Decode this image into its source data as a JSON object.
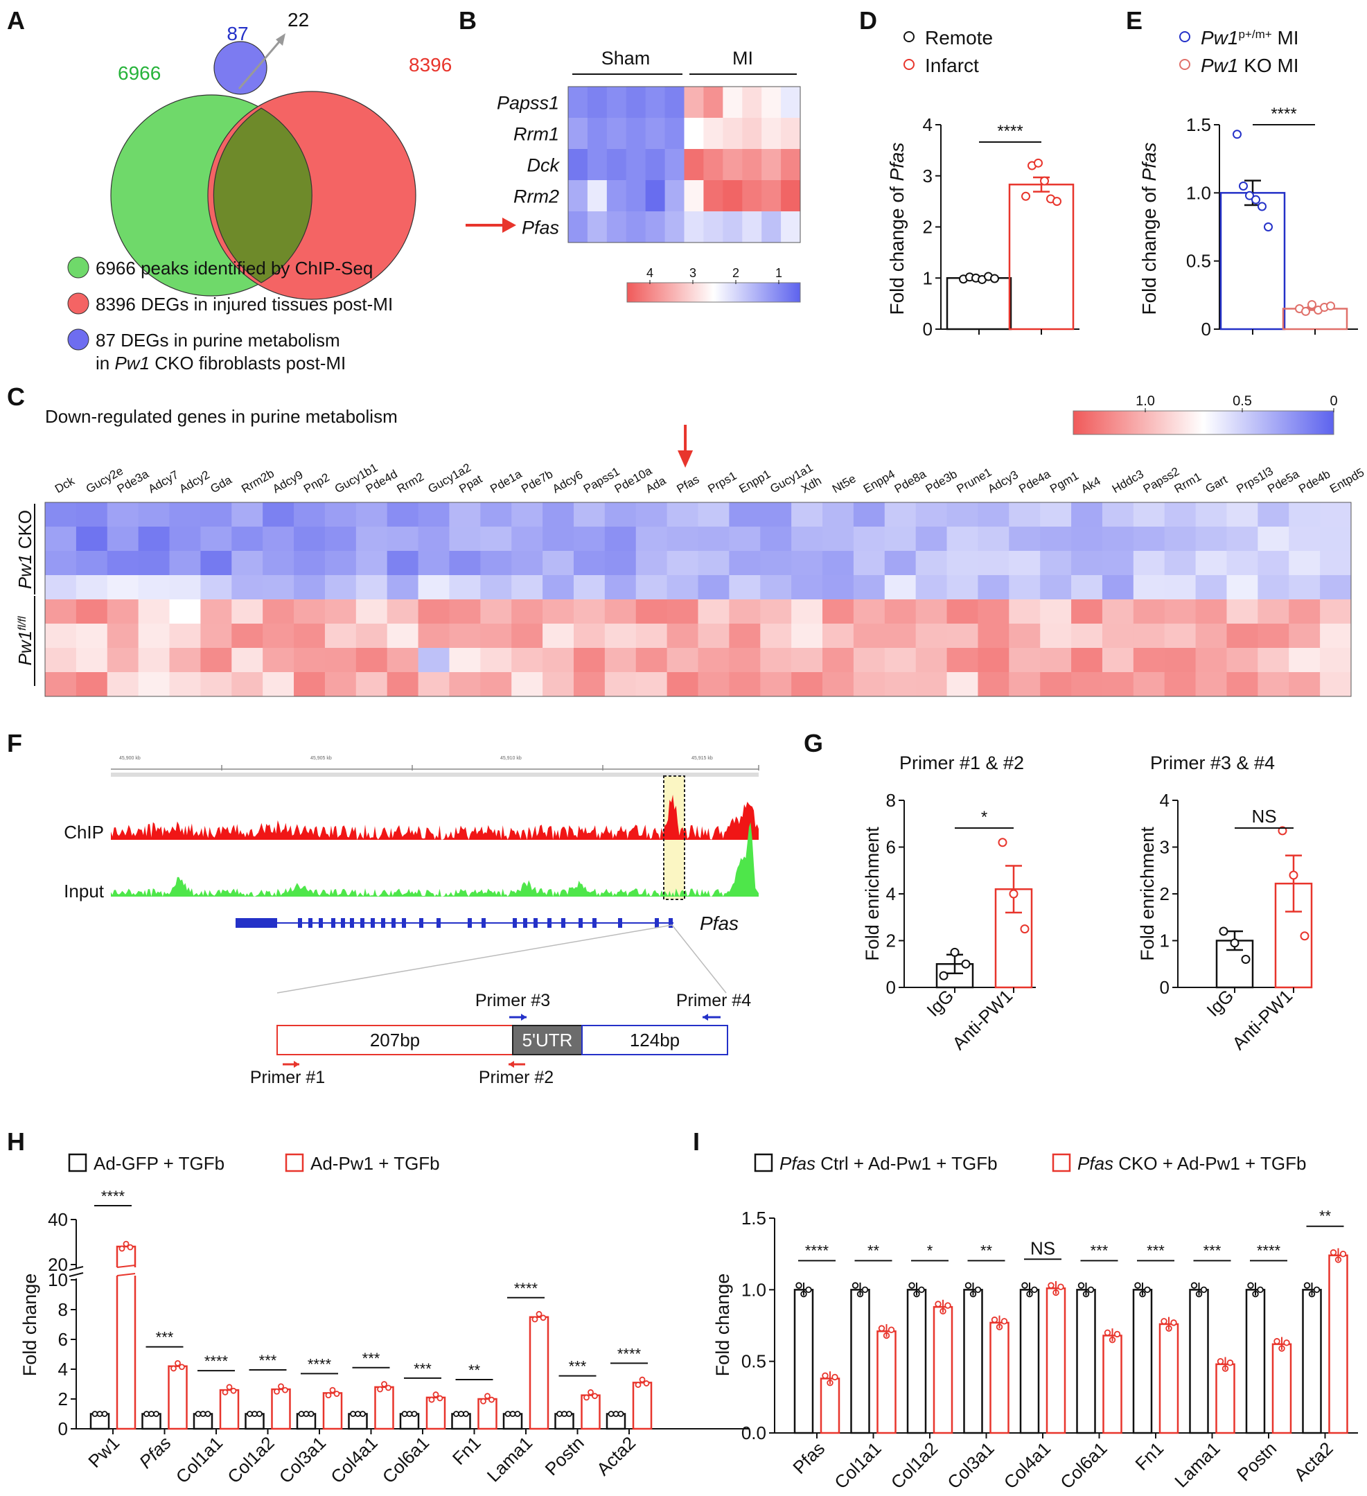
{
  "colors": {
    "red": "#e8352c",
    "blue": "#2431c8",
    "green": "#26b33a",
    "black": "#111111",
    "heat_red": "#f05a5a",
    "heat_white": "#ffffff",
    "heat_blue": "#5d63ee",
    "pfas_gray": "#6c6c6c",
    "venn_green": "#6fd96a",
    "venn_red": "#f46464",
    "venn_blue": "#6e6df0",
    "venn_olive": "#6e8a2a"
  },
  "panel_letters": [
    "A",
    "B",
    "C",
    "D",
    "E",
    "F",
    "G",
    "H",
    "I"
  ],
  "venn": {
    "n_chip": "6966",
    "n_deg": "8396",
    "n_purine": "87",
    "n_overlap": "22",
    "legend": [
      {
        "text": "6966 peaks identified by ChIP-Seq",
        "color": "green"
      },
      {
        "text": "8396 DEGs in injured tissues post-MI",
        "color": "red"
      },
      {
        "text": "87 DEGs in purine metabolism",
        "color": "blue"
      }
    ],
    "legend_line2_prefix": "in ",
    "legend_line2_italic": "Pw1",
    "legend_line2_suffix": " CKO fibroblasts post-MI"
  },
  "heat_b": {
    "groups": [
      "Sham",
      "MI"
    ],
    "genes": [
      "Papss1",
      "Rrm1",
      "Dck",
      "Rrm2",
      "Pfas"
    ],
    "scale_ticks": [
      "4",
      "3",
      "2",
      "1"
    ],
    "values": [
      [
        1.4,
        1.3,
        1.4,
        1.3,
        1.4,
        1.3,
        3.2,
        3.5,
        2.6,
        2.8,
        2.6,
        2.3
      ],
      [
        1.6,
        1.4,
        1.5,
        1.4,
        1.5,
        1.4,
        2.5,
        2.7,
        2.8,
        2.9,
        2.7,
        2.8
      ],
      [
        1.2,
        1.4,
        1.3,
        1.4,
        1.3,
        1.5,
        3.8,
        3.6,
        3.4,
        3.5,
        3.3,
        3.6
      ],
      [
        1.7,
        2.3,
        1.5,
        1.4,
        1.1,
        1.7,
        2.6,
        3.8,
        3.9,
        3.7,
        3.6,
        3.9
      ],
      [
        1.5,
        1.8,
        1.6,
        1.5,
        1.6,
        1.8,
        2.2,
        2.1,
        2.0,
        2.2,
        1.9,
        2.3
      ]
    ]
  },
  "heat_c": {
    "title": "Down-regulated genes in purine metabolism",
    "row_label_top": "CKO",
    "row_label_top_italic": "Pw1",
    "row_label_bottom_italic": "Pw1",
    "row_label_bottom_sup": "fl/fl",
    "scale_ticks": [
      "1.0",
      "0.5",
      "0"
    ],
    "genes": [
      "Dck",
      "Gucy2e",
      "Pde3a",
      "Adcy7",
      "Adcy2",
      "Gda",
      "Rrm2b",
      "Adcy9",
      "Pnp2",
      "Gucy1b1",
      "Pde4d",
      "Rrm2",
      "Gucy1a2",
      "Ppat",
      "Pde1a",
      "Pde7b",
      "Adcy6",
      "Papss1",
      "Pde10a",
      "Ada",
      "Pfas",
      "Prps1",
      "Enpp1",
      "Gucy1a1",
      "Xdh",
      "Nt5e",
      "Enpp4",
      "Pde8a",
      "Pde3b",
      "Prune1",
      "Adcy3",
      "Pde4a",
      "Pgm1",
      "Ak4",
      "Hddc3",
      "Papss2",
      "Rrm1",
      "Gart",
      "Prps1l3",
      "Pde5a",
      "Pde4b",
      "Entpd5"
    ],
    "arrow_gene": "Pfas"
  },
  "track": {
    "tracks": [
      "ChIP",
      "Input"
    ],
    "gene": "Pfas",
    "coords": [
      "45,900 kb",
      "45,905 kb",
      "45,910 kb",
      "45,915 kb"
    ],
    "primers": [
      "Primer #1",
      "Primer #2",
      "Primer #3",
      "Primer #4"
    ],
    "segments": [
      "207bp",
      "5'UTR",
      "124bp"
    ]
  },
  "chart_data": [
    {
      "panel": "D",
      "type": "bar",
      "categories": [
        "Remote",
        "Infarct"
      ],
      "values": [
        1.0,
        2.83
      ],
      "sem": [
        0.03,
        0.14
      ],
      "points": [
        [
          0.98,
          1.02,
          1.0,
          0.97,
          1.03,
          0.99
        ],
        [
          2.6,
          3.2,
          3.25,
          2.9,
          2.55,
          2.5
        ]
      ],
      "legend": [
        "Remote",
        "Infarct"
      ],
      "ylabel": "Fold change of",
      "ylabel_italic": "Pfas",
      "ylim": [
        0,
        4
      ],
      "yticks": [
        "0",
        "1",
        "2",
        "3",
        "4"
      ],
      "significance": "****"
    },
    {
      "panel": "E",
      "type": "bar",
      "categories": [
        "Pw1 p+/m+ MI",
        "Pw1 KO MI"
      ],
      "values": [
        1.0,
        0.15
      ],
      "sem": [
        0.09,
        0.01
      ],
      "points": [
        [
          1.43,
          1.05,
          0.98,
          0.95,
          0.9,
          0.75
        ],
        [
          0.15,
          0.13,
          0.18,
          0.14,
          0.16,
          0.17
        ]
      ],
      "legend_italic": [
        "Pw1",
        "Pw1"
      ],
      "legend_sup": [
        "p+/m+",
        ""
      ],
      "legend_rest": [
        " MI",
        " KO MI"
      ],
      "ylabel": "Fold change of",
      "ylabel_italic": "Pfas",
      "ylim": [
        0,
        1.5
      ],
      "yticks": [
        "0",
        "0.5",
        "1.0",
        "1.5"
      ],
      "significance": "****"
    },
    {
      "panel": "G1",
      "type": "bar",
      "title": "Primer #1 & #2",
      "categories": [
        "IgG",
        "Anti-PW1"
      ],
      "values": [
        1.0,
        4.2
      ],
      "sem": [
        0.4,
        1.0
      ],
      "points": [
        [
          0.5,
          1.5,
          1.0
        ],
        [
          6.2,
          4.0,
          2.5
        ]
      ],
      "ylabel": "Fold enrichment",
      "ylim": [
        0,
        8
      ],
      "yticks": [
        "0",
        "2",
        "4",
        "6",
        "8"
      ],
      "significance": "*"
    },
    {
      "panel": "G2",
      "type": "bar",
      "title": "Primer #3 & #4",
      "categories": [
        "IgG",
        "Anti-PW1"
      ],
      "values": [
        1.0,
        2.22
      ],
      "sem": [
        0.2,
        0.6
      ],
      "points": [
        [
          1.2,
          0.95,
          0.6
        ],
        [
          3.35,
          2.4,
          1.1
        ]
      ],
      "ylabel": "Fold enrichment",
      "ylim": [
        0,
        4
      ],
      "yticks": [
        "0",
        "1",
        "2",
        "3",
        "4"
      ],
      "significance": "NS"
    },
    {
      "panel": "H",
      "type": "bar",
      "legend": [
        "Ad-GFP + TGFb",
        "Ad-Pw1 + TGFb"
      ],
      "categories": [
        "Pw1",
        "Pfas",
        "Col1a1",
        "Col1a2",
        "Col3a1",
        "Col4a1",
        "Col6a1",
        "Fn1",
        "Lama1",
        "Postn",
        "Acta2"
      ],
      "series": [
        {
          "name": "Ad-GFP + TGFb",
          "values": [
            1,
            1,
            1,
            1,
            1,
            1,
            1,
            1,
            1,
            1,
            1
          ]
        },
        {
          "name": "Ad-Pw1 + TGFb",
          "values": [
            28,
            4.2,
            2.6,
            2.65,
            2.4,
            2.8,
            2.1,
            2.0,
            7.5,
            2.25,
            3.1
          ]
        }
      ],
      "significance": [
        "****",
        "***",
        "****",
        "***",
        "****",
        "***",
        "***",
        "**",
        "****",
        "***",
        "****"
      ],
      "ylabel": "Fold change",
      "yticks_lower": [
        "0",
        "2",
        "4",
        "6",
        "8",
        "10"
      ],
      "yticks_upper": [
        "20",
        "40"
      ],
      "ylim": [
        0,
        40
      ]
    },
    {
      "panel": "I",
      "type": "bar",
      "legend_italic": [
        "Pfas",
        "Pfas"
      ],
      "legend_rest": [
        " Ctrl + Ad-Pw1 + TGFb",
        " CKO + Ad-Pw1 + TGFb"
      ],
      "categories": [
        "Pfas",
        "Col1a1",
        "Col1a2",
        "Col3a1",
        "Col4a1",
        "Col6a1",
        "Fn1",
        "Lama1",
        "Postn",
        "Acta2"
      ],
      "series": [
        {
          "name": "Pfas Ctrl + Ad-Pw1 + TGFb",
          "values": [
            1,
            1,
            1,
            1,
            1,
            1,
            1,
            1,
            1,
            1
          ]
        },
        {
          "name": "Pfas CKO + Ad-Pw1 + TGFb",
          "values": [
            0.38,
            0.71,
            0.88,
            0.77,
            1.01,
            0.68,
            0.76,
            0.48,
            0.62,
            1.24
          ]
        }
      ],
      "significance": [
        "****",
        "**",
        "*",
        "**",
        "NS",
        "***",
        "***",
        "***",
        "****",
        "**"
      ],
      "ylabel": "Fold change",
      "yticks": [
        "0.0",
        "0.5",
        "1.0",
        "1.5"
      ],
      "ylim": [
        0,
        1.5
      ]
    }
  ]
}
